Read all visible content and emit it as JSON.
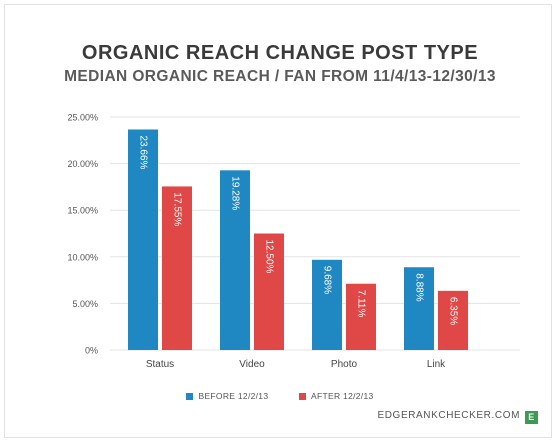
{
  "chart_data": {
    "type": "bar",
    "title": "ORGANIC REACH CHANGE POST TYPE",
    "subtitle": "MEDIAN ORGANIC REACH / FAN FROM 11/4/13-12/30/13",
    "categories": [
      "Status",
      "Video",
      "Photo",
      "Link"
    ],
    "series": [
      {
        "name": "BEFORE 12/2/13",
        "color": "#1f88c2",
        "values": [
          23.66,
          19.28,
          9.68,
          8.88
        ],
        "labels": [
          "23.66%",
          "19.28%",
          "9.68%",
          "8.88%"
        ]
      },
      {
        "name": "AFTER 12/2/13",
        "color": "#e04848",
        "values": [
          17.55,
          12.5,
          7.11,
          6.35
        ],
        "labels": [
          "17.55%",
          "12.50%",
          "7.11%",
          "6.35%"
        ]
      }
    ],
    "yticks": [
      {
        "value": 0,
        "label": "0%"
      },
      {
        "value": 5,
        "label": "5.00%"
      },
      {
        "value": 10,
        "label": "10.00%"
      },
      {
        "value": 15,
        "label": "15.00%"
      },
      {
        "value": 20,
        "label": "20.00%"
      },
      {
        "value": 25,
        "label": "25.00%"
      }
    ],
    "ylim": [
      0,
      25
    ],
    "grid": true,
    "legend_position": "bottom"
  },
  "branding": {
    "text": "EDGERANKCHECKER.COM",
    "logo_letter": "E",
    "logo_color": "#3c9a53"
  }
}
